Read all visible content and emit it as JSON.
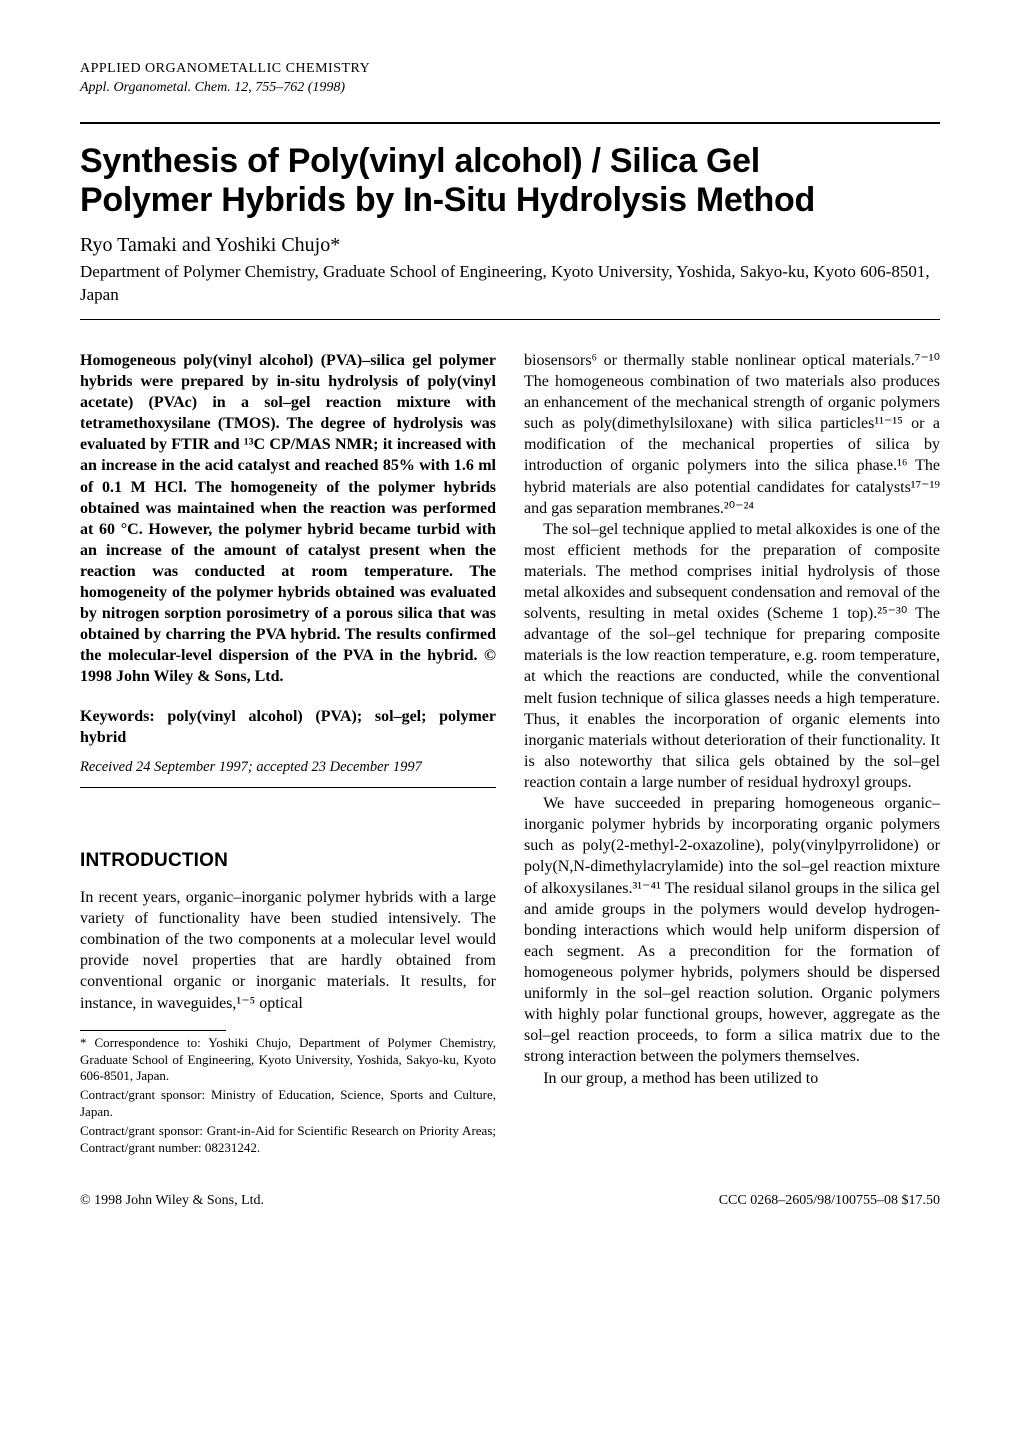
{
  "journal": {
    "name": "APPLIED ORGANOMETALLIC CHEMISTRY",
    "ref": "Appl. Organometal. Chem. 12, 755–762 (1998)"
  },
  "title_line1": "Synthesis of Poly(vinyl alcohol) / Silica Gel",
  "title_line2": "Polymer Hybrids by In-Situ Hydrolysis Method",
  "authors": "Ryo Tamaki and Yoshiki Chujo*",
  "affiliation": "Department of Polymer Chemistry, Graduate School of Engineering, Kyoto University, Yoshida, Sakyo-ku, Kyoto 606-8501, Japan",
  "abstract": "Homogeneous poly(vinyl alcohol) (PVA)–silica gel polymer hybrids were prepared by in-situ hydrolysis of poly(vinyl acetate) (PVAc) in a sol–gel reaction mixture with tetramethoxysilane (TMOS). The degree of hydrolysis was evaluated by FTIR and ¹³C CP/MAS NMR; it increased with an increase in the acid catalyst and reached 85% with 1.6 ml of 0.1 M HCl. The homogeneity of the polymer hybrids obtained was maintained when the reaction was performed at 60 °C. However, the polymer hybrid became turbid with an increase of the amount of catalyst present when the reaction was conducted at room temperature. The homogeneity of the polymer hybrids obtained was evaluated by nitrogen sorption porosimetry of a porous silica that was obtained by charring the PVA hybrid. The results confirmed the molecular-level dispersion of the PVA in the hybrid. © 1998 John Wiley & Sons, Ltd.",
  "keywords": "Keywords: poly(vinyl alcohol) (PVA); sol–gel; polymer hybrid",
  "received": "Received 24 September 1997; accepted 23 December 1997",
  "intro_heading": "INTRODUCTION",
  "intro_left": "In recent years, organic–inorganic polymer hybrids with a large variety of functionality have been studied intensively. The combination of the two components at a molecular level would provide novel properties that are hardly obtained from conventional organic or inorganic materials. It results, for instance, in waveguides,¹⁻⁵ optical",
  "right_p1": "biosensors⁶ or thermally stable nonlinear optical materials.⁷⁻¹⁰ The homogeneous combination of two materials also produces an enhancement of the mechanical strength of organic polymers such as poly(dimethylsiloxane) with silica particles¹¹⁻¹⁵ or a modification of the mechanical properties of silica by introduction of organic polymers into the silica phase.¹⁶ The hybrid materials are also potential candidates for catalysts¹⁷⁻¹⁹ and gas separation membranes.²⁰⁻²⁴",
  "right_p2": "The sol–gel technique applied to metal alkoxides is one of the most efficient methods for the preparation of composite materials. The method comprises initial hydrolysis of those metal alkoxides and subsequent condensation and removal of the solvents, resulting in metal oxides (Scheme 1 top).²⁵⁻³⁰ The advantage of the sol–gel technique for preparing composite materials is the low reaction temperature, e.g. room temperature, at which the reactions are conducted, while the conventional melt fusion technique of silica glasses needs a high temperature. Thus, it enables the incorporation of organic elements into inorganic materials without deterioration of their functionality. It is also noteworthy that silica gels obtained by the sol–gel reaction contain a large number of residual hydroxyl groups.",
  "right_p3": "We have succeeded in preparing homogeneous organic–inorganic polymer hybrids by incorporating organic polymers such as poly(2-methyl-2-oxazoline), poly(vinylpyrrolidone) or poly(N,N-dimethylacrylamide) into the sol–gel reaction mixture of alkoxysilanes.³¹⁻⁴¹ The residual silanol groups in the silica gel and amide groups in the polymers would develop hydrogen-bonding interactions which would help uniform dispersion of each segment. As a precondition for the formation of homogeneous polymer hybrids, polymers should be dispersed uniformly in the sol–gel reaction solution. Organic polymers with highly polar functional groups, however, aggregate as the sol–gel reaction proceeds, to form a silica matrix due to the strong interaction between the polymers themselves.",
  "right_p4": "In our group, a method has been utilized to",
  "footnotes": {
    "f1": "* Correspondence to: Yoshiki Chujo, Department of Polymer Chemistry, Graduate School of Engineering, Kyoto University, Yoshida, Sakyo-ku, Kyoto 606-8501, Japan.",
    "f2": "Contract/grant sponsor: Ministry of Education, Science, Sports and Culture, Japan.",
    "f3": "Contract/grant sponsor: Grant-in-Aid for Scientific Research on Priority Areas; Contract/grant number: 08231242."
  },
  "footer": {
    "left": "© 1998 John Wiley & Sons, Ltd.",
    "right": "CCC 0268–2605/98/100755–08 $17.50"
  }
}
